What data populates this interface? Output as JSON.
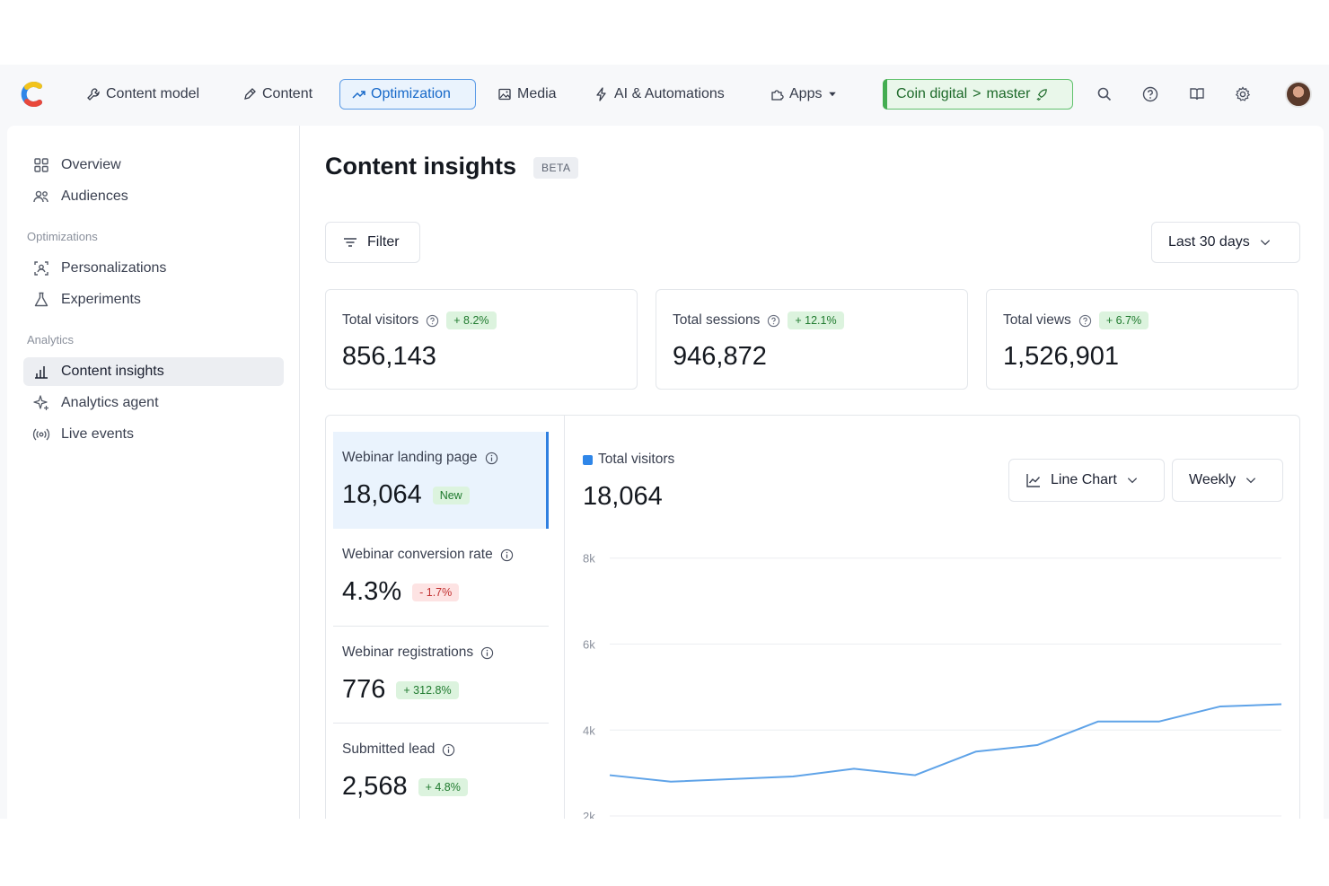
{
  "nav": {
    "items": [
      {
        "label": "Content model",
        "icon": "wrench-icon"
      },
      {
        "label": "Content",
        "icon": "pen-icon"
      },
      {
        "label": "Optimization",
        "icon": "trend-up-icon",
        "active": true
      },
      {
        "label": "Media",
        "icon": "image-icon"
      },
      {
        "label": "AI & Automations",
        "icon": "lightning-icon"
      },
      {
        "label": "Apps",
        "icon": "puzzle-icon",
        "dropdown": true
      }
    ],
    "environment": {
      "space": "Coin digital",
      "separator": ">",
      "branch": "master",
      "icon": "rocket-icon"
    },
    "right_icons": [
      "search-icon",
      "help-icon",
      "book-icon",
      "gear-icon",
      "avatar"
    ],
    "accent": "#1769c9",
    "env_color": "#43ad51"
  },
  "sidebar": {
    "items_top": [
      {
        "label": "Overview",
        "icon": "grid-icon"
      },
      {
        "label": "Audiences",
        "icon": "people-icon"
      }
    ],
    "section_optimizations": "Optimizations",
    "items_opt": [
      {
        "label": "Personalizations",
        "icon": "personalization-icon"
      },
      {
        "label": "Experiments",
        "icon": "flask-icon"
      }
    ],
    "section_analytics": "Analytics",
    "items_analytics": [
      {
        "label": "Content insights",
        "icon": "bar-chart-icon",
        "active": true
      },
      {
        "label": "Analytics agent",
        "icon": "sparkle-icon"
      },
      {
        "label": "Live events",
        "icon": "broadcast-icon"
      }
    ]
  },
  "main": {
    "title": "Content insights",
    "beta": "BETA",
    "filter_label": "Filter",
    "date_range": "Last 30 days",
    "stats": [
      {
        "label": "Total visitors",
        "change": "+ 8.2%",
        "value": "856,143"
      },
      {
        "label": "Total sessions",
        "change": "+ 12.1%",
        "value": "946,872"
      },
      {
        "label": "Total views",
        "change": "+ 6.7%",
        "value": "1,526,901"
      }
    ],
    "metrics": [
      {
        "label": "Webinar landing page",
        "value": "18,064",
        "badge": "New",
        "badge_type": "green",
        "selected": true
      },
      {
        "label": "Webinar conversion rate",
        "value": "4.3%",
        "badge": "- 1.7%",
        "badge_type": "red"
      },
      {
        "label": "Webinar registrations",
        "value": "776",
        "badge": "+ 312.8%",
        "badge_type": "green"
      },
      {
        "label": "Submitted lead",
        "value": "2,568",
        "badge": "+ 4.8%",
        "badge_type": "green"
      }
    ],
    "chart_controls": {
      "type_label": "Line Chart",
      "interval_label": "Weekly"
    }
  },
  "chart_data": {
    "type": "line",
    "series": [
      {
        "name": "Total visitors",
        "color": "#5fa3e8",
        "values": [
          2950,
          2800,
          2860,
          2920,
          3100,
          2950,
          3500,
          3650,
          4200,
          4200,
          4550,
          4600
        ]
      }
    ],
    "total": "18,064",
    "ylim": [
      1500,
      8600
    ],
    "y_ticks": [
      {
        "value": 8000,
        "label": "8k"
      },
      {
        "value": 6000,
        "label": "6k"
      },
      {
        "value": 4000,
        "label": "4k"
      },
      {
        "value": 2000,
        "label": "2k"
      }
    ],
    "grid": true
  }
}
